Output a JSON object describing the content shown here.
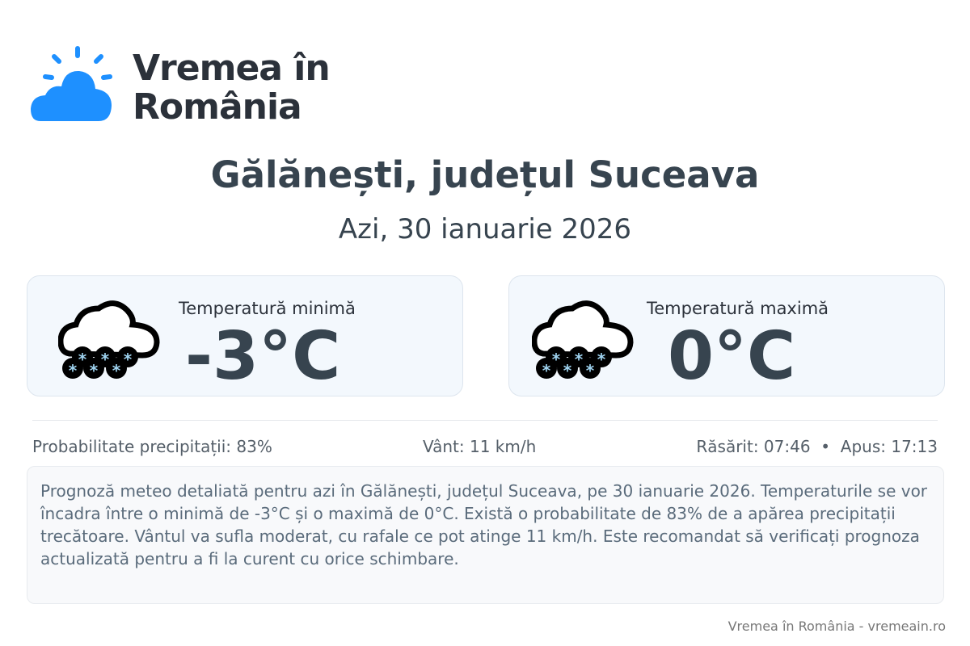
{
  "brand": {
    "name_line1": "Vremea în",
    "name_line2": "România",
    "accent": "#1e90ff"
  },
  "header": {
    "title": "Gălănești, județul Suceava",
    "date": "Azi, 30 ianuarie 2026"
  },
  "cards": [
    {
      "label": "Temperatură minimă",
      "value": "-3°C",
      "icon": "snow-cloud-icon"
    },
    {
      "label": "Temperatură maximă",
      "value": "0°C",
      "icon": "snow-cloud-icon"
    }
  ],
  "stats": {
    "precipitation": "Probabilitate precipitații: 83%",
    "wind": "Vânt: 11 km/h",
    "sun": "Răsărit: 07:46  •  Apus: 17:13"
  },
  "description": "Prognoză meteo detaliată pentru azi în Gălănești, județul Suceava, pe 30 ianuarie 2026. Temperaturile se vor încadra între o minimă de -3°C și o maximă de 0°C. Există o probabilitate de 83% de a apărea precipitații trecătoare. Vântul va sufla moderat, cu rafale ce pot atinge 11 km/h. Este recomandat să verificați prognoza actualizată pentru a fi la curent cu orice schimbare.",
  "footer": "Vremea în România - vremeain.ro"
}
